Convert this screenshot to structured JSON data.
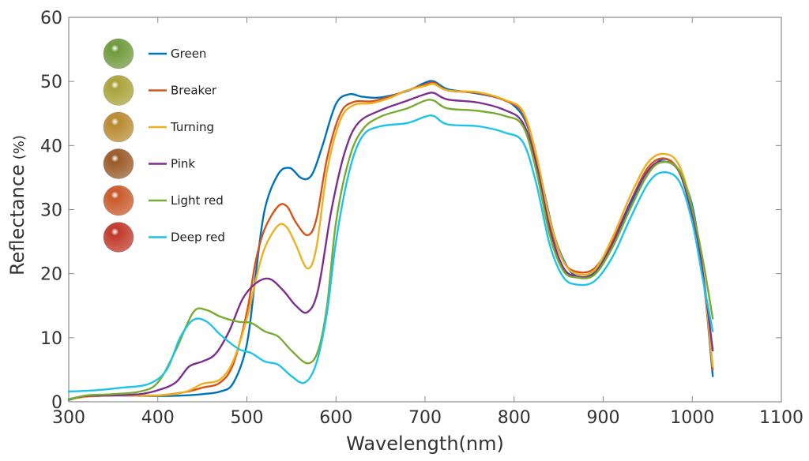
{
  "chart_data": {
    "type": "line",
    "title": "",
    "xlabel": "Wavelength(nm)",
    "ylabel": "Reflectance",
    "ylabel_unit": "(%)",
    "xlim": [
      300,
      1100
    ],
    "ylim": [
      0,
      60
    ],
    "xticks": [
      300,
      400,
      500,
      600,
      700,
      800,
      900,
      1000,
      1100
    ],
    "yticks": [
      0,
      10,
      20,
      30,
      40,
      50,
      60
    ],
    "grid": false,
    "legend_position": "top-left",
    "series": [
      {
        "name": "Green",
        "color": "#0072BD",
        "fruit_color": "#6f9a3c",
        "points": [
          [
            300,
            0.3
          ],
          [
            320,
            0.9
          ],
          [
            350,
            1.0
          ],
          [
            400,
            0.9
          ],
          [
            430,
            1.0
          ],
          [
            450,
            1.2
          ],
          [
            470,
            1.6
          ],
          [
            485,
            3.0
          ],
          [
            500,
            9.0
          ],
          [
            510,
            20.0
          ],
          [
            520,
            30.0
          ],
          [
            535,
            35.5
          ],
          [
            548,
            36.5
          ],
          [
            560,
            35.0
          ],
          [
            568,
            34.8
          ],
          [
            575,
            36.0
          ],
          [
            585,
            40.0
          ],
          [
            600,
            46.5
          ],
          [
            615,
            48.0
          ],
          [
            630,
            47.6
          ],
          [
            650,
            47.5
          ],
          [
            680,
            48.5
          ],
          [
            700,
            49.8
          ],
          [
            710,
            50.0
          ],
          [
            725,
            48.8
          ],
          [
            750,
            48.3
          ],
          [
            780,
            47.5
          ],
          [
            800,
            46.2
          ],
          [
            815,
            43.0
          ],
          [
            830,
            35.0
          ],
          [
            845,
            26.0
          ],
          [
            860,
            21.0
          ],
          [
            873,
            19.5
          ],
          [
            890,
            20.2
          ],
          [
            910,
            24.5
          ],
          [
            930,
            30.5
          ],
          [
            950,
            35.5
          ],
          [
            965,
            37.8
          ],
          [
            980,
            37.0
          ],
          [
            995,
            33.0
          ],
          [
            1005,
            27.0
          ],
          [
            1015,
            16.0
          ],
          [
            1023,
            4.0
          ]
        ]
      },
      {
        "name": "Breaker",
        "color": "#D95319",
        "fruit_color": "#a9a33a",
        "points": [
          [
            300,
            0.4
          ],
          [
            320,
            0.8
          ],
          [
            350,
            1.0
          ],
          [
            400,
            1.0
          ],
          [
            430,
            1.5
          ],
          [
            450,
            2.2
          ],
          [
            470,
            3.0
          ],
          [
            485,
            6.0
          ],
          [
            500,
            14.0
          ],
          [
            510,
            22.0
          ],
          [
            520,
            27.0
          ],
          [
            535,
            30.5
          ],
          [
            545,
            30.5
          ],
          [
            555,
            28.0
          ],
          [
            568,
            26.0
          ],
          [
            578,
            28.5
          ],
          [
            590,
            38.0
          ],
          [
            605,
            45.0
          ],
          [
            620,
            46.8
          ],
          [
            640,
            46.9
          ],
          [
            660,
            47.6
          ],
          [
            680,
            48.6
          ],
          [
            700,
            49.5
          ],
          [
            710,
            49.8
          ],
          [
            725,
            48.6
          ],
          [
            760,
            48.2
          ],
          [
            790,
            47.0
          ],
          [
            810,
            45.0
          ],
          [
            825,
            38.0
          ],
          [
            840,
            28.0
          ],
          [
            855,
            22.0
          ],
          [
            870,
            20.3
          ],
          [
            890,
            20.8
          ],
          [
            910,
            25.0
          ],
          [
            930,
            31.0
          ],
          [
            950,
            36.5
          ],
          [
            968,
            38.0
          ],
          [
            985,
            36.0
          ],
          [
            1000,
            29.0
          ],
          [
            1012,
            20.0
          ],
          [
            1023,
            5.0
          ]
        ]
      },
      {
        "name": "Turning",
        "color": "#EDB120",
        "fruit_color": "#b88a30",
        "points": [
          [
            300,
            0.4
          ],
          [
            320,
            0.8
          ],
          [
            350,
            1.0
          ],
          [
            400,
            1.0
          ],
          [
            430,
            1.5
          ],
          [
            450,
            2.8
          ],
          [
            470,
            3.5
          ],
          [
            485,
            6.5
          ],
          [
            500,
            13.0
          ],
          [
            510,
            19.0
          ],
          [
            520,
            24.0
          ],
          [
            535,
            27.5
          ],
          [
            545,
            27.2
          ],
          [
            555,
            24.5
          ],
          [
            568,
            20.8
          ],
          [
            578,
            24.0
          ],
          [
            590,
            36.0
          ],
          [
            605,
            44.0
          ],
          [
            620,
            46.3
          ],
          [
            640,
            46.6
          ],
          [
            660,
            47.4
          ],
          [
            680,
            48.6
          ],
          [
            700,
            49.3
          ],
          [
            710,
            49.6
          ],
          [
            725,
            48.6
          ],
          [
            760,
            48.3
          ],
          [
            790,
            47.1
          ],
          [
            810,
            45.3
          ],
          [
            825,
            38.5
          ],
          [
            840,
            28.5
          ],
          [
            855,
            22.0
          ],
          [
            870,
            20.0
          ],
          [
            890,
            20.5
          ],
          [
            910,
            25.5
          ],
          [
            930,
            32.0
          ],
          [
            950,
            37.3
          ],
          [
            968,
            38.7
          ],
          [
            985,
            37.0
          ],
          [
            1000,
            30.0
          ],
          [
            1012,
            20.0
          ],
          [
            1023,
            5.5
          ]
        ]
      },
      {
        "name": "Pink",
        "color": "#7E2F8E",
        "fruit_color": "#9a5a28",
        "points": [
          [
            300,
            0.4
          ],
          [
            320,
            0.9
          ],
          [
            350,
            1.0
          ],
          [
            380,
            1.2
          ],
          [
            400,
            1.8
          ],
          [
            420,
            3.0
          ],
          [
            435,
            5.5
          ],
          [
            450,
            6.3
          ],
          [
            465,
            7.5
          ],
          [
            480,
            11.0
          ],
          [
            495,
            16.0
          ],
          [
            510,
            18.5
          ],
          [
            525,
            19.2
          ],
          [
            540,
            17.5
          ],
          [
            555,
            15.0
          ],
          [
            568,
            14.0
          ],
          [
            580,
            17.5
          ],
          [
            595,
            30.0
          ],
          [
            610,
            39.0
          ],
          [
            625,
            43.5
          ],
          [
            650,
            45.5
          ],
          [
            680,
            47.0
          ],
          [
            700,
            48.0
          ],
          [
            710,
            48.2
          ],
          [
            725,
            47.2
          ],
          [
            760,
            46.7
          ],
          [
            790,
            45.5
          ],
          [
            810,
            43.5
          ],
          [
            825,
            37.0
          ],
          [
            840,
            27.0
          ],
          [
            855,
            21.0
          ],
          [
            870,
            19.6
          ],
          [
            890,
            20.0
          ],
          [
            910,
            24.5
          ],
          [
            930,
            31.0
          ],
          [
            950,
            36.0
          ],
          [
            966,
            37.5
          ],
          [
            985,
            36.0
          ],
          [
            1000,
            29.0
          ],
          [
            1012,
            20.0
          ],
          [
            1023,
            8.0
          ]
        ]
      },
      {
        "name": "Light red",
        "color": "#77AC30",
        "fruit_color": "#c85a2a",
        "points": [
          [
            300,
            0.4
          ],
          [
            320,
            1.0
          ],
          [
            350,
            1.2
          ],
          [
            380,
            1.6
          ],
          [
            400,
            3.0
          ],
          [
            420,
            8.0
          ],
          [
            440,
            14.0
          ],
          [
            455,
            14.3
          ],
          [
            470,
            13.3
          ],
          [
            490,
            12.5
          ],
          [
            505,
            12.3
          ],
          [
            520,
            11.0
          ],
          [
            535,
            10.2
          ],
          [
            550,
            8.0
          ],
          [
            568,
            6.0
          ],
          [
            580,
            8.0
          ],
          [
            590,
            15.0
          ],
          [
            600,
            28.0
          ],
          [
            615,
            38.0
          ],
          [
            630,
            42.5
          ],
          [
            650,
            44.5
          ],
          [
            680,
            45.8
          ],
          [
            700,
            47.0
          ],
          [
            710,
            47.0
          ],
          [
            725,
            45.8
          ],
          [
            760,
            45.4
          ],
          [
            790,
            44.6
          ],
          [
            810,
            43.0
          ],
          [
            825,
            36.0
          ],
          [
            840,
            26.0
          ],
          [
            855,
            20.5
          ],
          [
            870,
            19.4
          ],
          [
            890,
            19.8
          ],
          [
            910,
            24.0
          ],
          [
            930,
            30.0
          ],
          [
            950,
            35.5
          ],
          [
            966,
            37.4
          ],
          [
            985,
            36.2
          ],
          [
            1000,
            30.0
          ],
          [
            1012,
            22.0
          ],
          [
            1023,
            13.0
          ]
        ]
      },
      {
        "name": "Deep red",
        "color": "#1EC3E8",
        "fruit_color": "#c0392b",
        "points": [
          [
            300,
            1.6
          ],
          [
            330,
            1.8
          ],
          [
            360,
            2.2
          ],
          [
            390,
            2.8
          ],
          [
            410,
            5.0
          ],
          [
            425,
            10.0
          ],
          [
            440,
            12.8
          ],
          [
            455,
            12.5
          ],
          [
            470,
            10.5
          ],
          [
            490,
            8.3
          ],
          [
            505,
            7.6
          ],
          [
            520,
            6.3
          ],
          [
            535,
            5.8
          ],
          [
            550,
            4.0
          ],
          [
            565,
            3.0
          ],
          [
            578,
            6.0
          ],
          [
            590,
            14.0
          ],
          [
            600,
            25.0
          ],
          [
            615,
            36.0
          ],
          [
            630,
            41.5
          ],
          [
            650,
            43.0
          ],
          [
            680,
            43.5
          ],
          [
            700,
            44.5
          ],
          [
            710,
            44.6
          ],
          [
            725,
            43.3
          ],
          [
            760,
            43.0
          ],
          [
            790,
            42.0
          ],
          [
            810,
            40.5
          ],
          [
            825,
            34.0
          ],
          [
            840,
            24.5
          ],
          [
            855,
            19.5
          ],
          [
            870,
            18.3
          ],
          [
            890,
            18.8
          ],
          [
            910,
            22.5
          ],
          [
            930,
            28.5
          ],
          [
            950,
            34.0
          ],
          [
            966,
            35.8
          ],
          [
            985,
            34.5
          ],
          [
            1000,
            28.0
          ],
          [
            1012,
            19.0
          ],
          [
            1023,
            11.0
          ]
        ]
      }
    ]
  }
}
